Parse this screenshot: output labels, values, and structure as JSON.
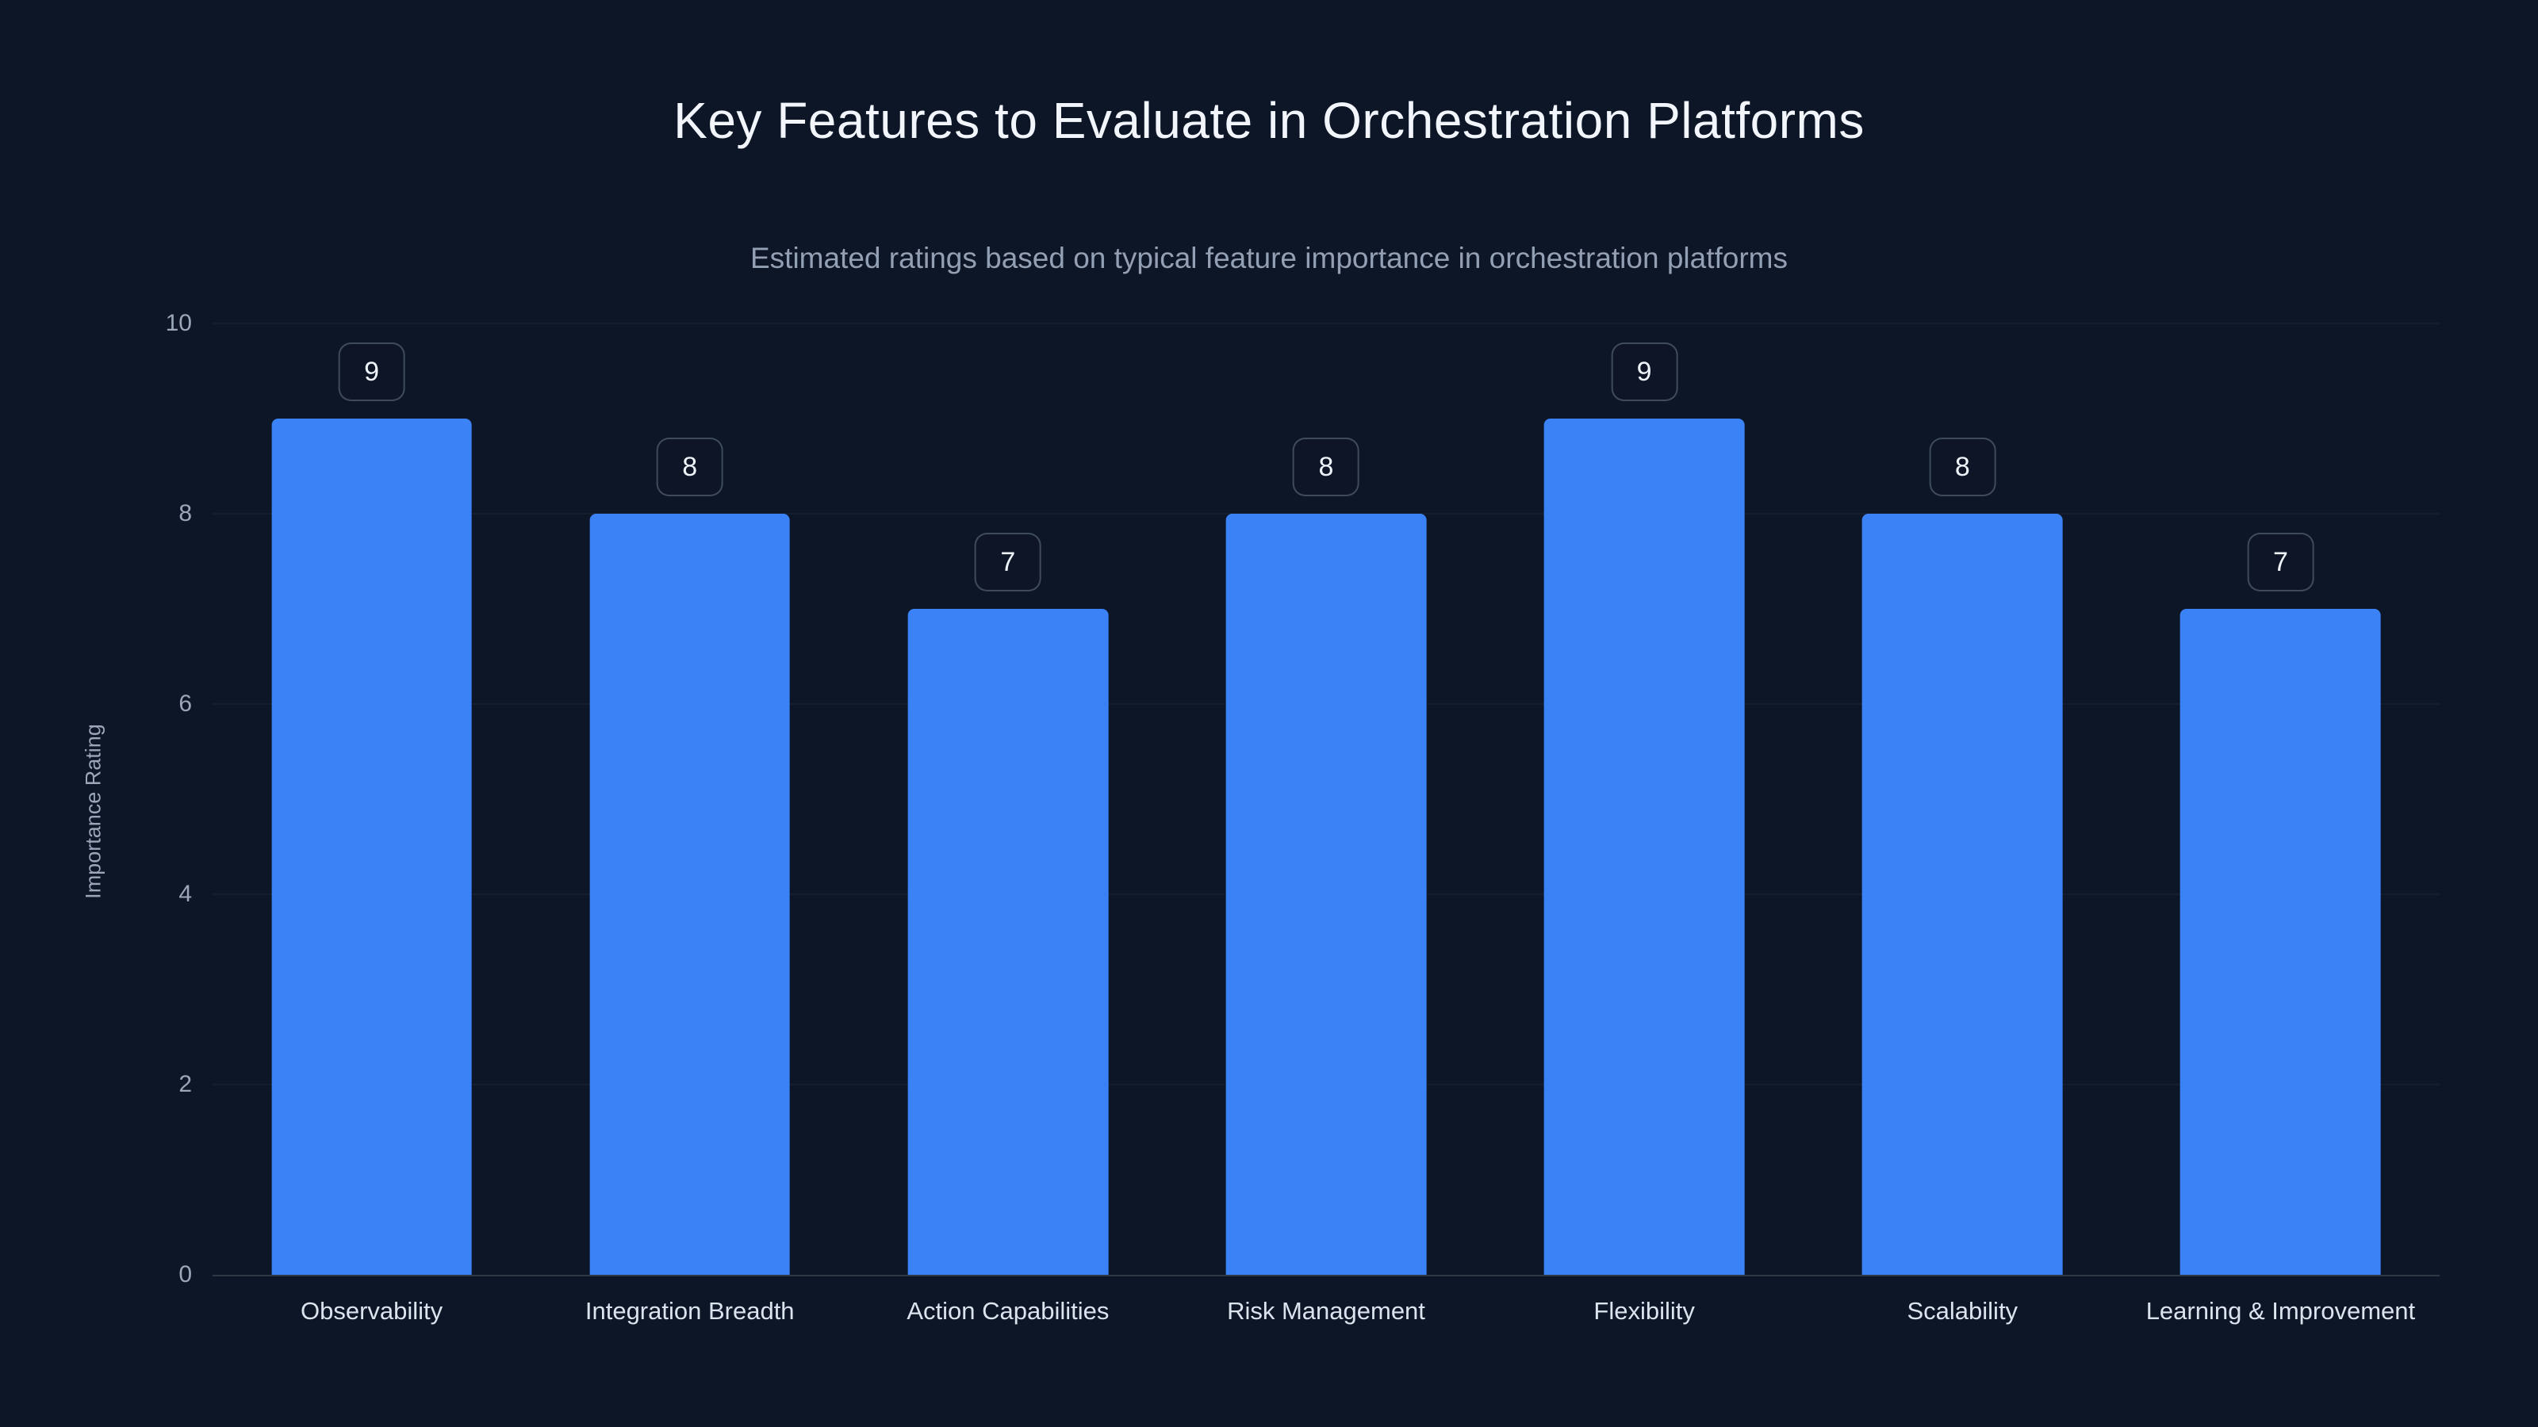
{
  "chart_data": {
    "type": "bar",
    "title": "Key Features to Evaluate in Orchestration Platforms",
    "subtitle": "Estimated ratings based on typical feature importance in orchestration platforms",
    "categories": [
      "Observability",
      "Integration Breadth",
      "Action Capabilities",
      "Risk Management",
      "Flexibility",
      "Scalability",
      "Learning & Improvement"
    ],
    "values": [
      9,
      8,
      7,
      8,
      9,
      8,
      7
    ],
    "xlabel": "",
    "ylabel": "Importance Rating",
    "ylim": [
      0,
      10
    ],
    "yticks": [
      0,
      2,
      4,
      6,
      8,
      10
    ],
    "grid": true,
    "legend": false,
    "bar_color": "#3b82f6",
    "background_color": "#0d1626"
  }
}
